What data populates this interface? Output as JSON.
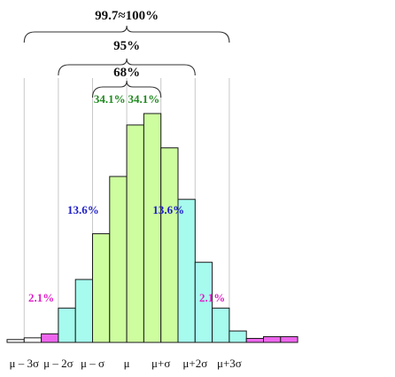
{
  "chart_data": {
    "type": "bar",
    "title": "",
    "xlabel": "",
    "ylabel": "",
    "x_ticks": [
      "μ – 3σ",
      "μ – 2σ",
      "μ – σ",
      "μ",
      "μ+σ",
      "μ+2σ",
      "μ+3σ"
    ],
    "bins": [
      {
        "x0": -3.5,
        "x1": -3.0,
        "value": 0.5,
        "color": "#ffffff"
      },
      {
        "x0": -3.0,
        "x1": -2.5,
        "value": 0.8,
        "color": "#ffffff"
      },
      {
        "x0": -2.5,
        "x1": -2.0,
        "value": 1.5,
        "color": "#ee66ee"
      },
      {
        "x0": -2.0,
        "x1": -1.5,
        "value": 6.0,
        "color": "#a6fbee"
      },
      {
        "x0": -1.5,
        "x1": -1.0,
        "value": 11.0,
        "color": "#a6fbee"
      },
      {
        "x0": -1.0,
        "x1": -0.5,
        "value": 19.0,
        "color": "#cdfd9f"
      },
      {
        "x0": -0.5,
        "x1": 0.0,
        "value": 29.0,
        "color": "#cdfd9f"
      },
      {
        "x0": 0.0,
        "x1": 0.5,
        "value": 38.0,
        "color": "#cdfd9f"
      },
      {
        "x0": 0.5,
        "x1": 1.0,
        "value": 40.0,
        "color": "#cdfd9f"
      },
      {
        "x0": 1.0,
        "x1": 1.5,
        "value": 34.0,
        "color": "#cdfd9f"
      },
      {
        "x0": 1.5,
        "x1": 2.0,
        "value": 25.0,
        "color": "#a6fbee"
      },
      {
        "x0": 2.0,
        "x1": 2.5,
        "value": 14.0,
        "color": "#a6fbee"
      },
      {
        "x0": 2.5,
        "x1": 3.0,
        "value": 6.0,
        "color": "#a6fbee"
      },
      {
        "x0": 3.0,
        "x1": 3.5,
        "value": 2.0,
        "color": "#a6fbee"
      },
      {
        "x0": 3.5,
        "x1": 4.0,
        "value": 0.7,
        "color": "#ee66ee"
      },
      {
        "x0": 4.0,
        "x1": 4.5,
        "value": 1.0,
        "color": "#ee66ee"
      },
      {
        "x0": 4.5,
        "x1": 5.0,
        "value": 1.0,
        "color": "#ee66ee"
      }
    ],
    "xlim": [
      -3.5,
      5.0
    ],
    "ylim": [
      0,
      40
    ],
    "reference_lines": [
      -3,
      -2,
      -1,
      0,
      1,
      2,
      3
    ],
    "brackets": [
      {
        "from": -3,
        "to": 3,
        "label": "99.7≈100%"
      },
      {
        "from": -2,
        "to": 2,
        "label": "95%"
      },
      {
        "from": -1,
        "to": 1,
        "label": "68%"
      }
    ],
    "annotations": [
      {
        "text": "34.1%",
        "x": -0.5,
        "color": "#228b22"
      },
      {
        "text": "34.1%",
        "x": 0.5,
        "color": "#228b22"
      },
      {
        "text": "13.6%",
        "x": -1.5,
        "color": "#1e1ecc"
      },
      {
        "text": "13.6%",
        "x": 1.5,
        "color": "#1e1ecc"
      },
      {
        "text": "2.1%",
        "x": -2.5,
        "color": "#e020c8"
      },
      {
        "text": "2.1%",
        "x": 2.5,
        "color": "#e020c8"
      }
    ]
  }
}
